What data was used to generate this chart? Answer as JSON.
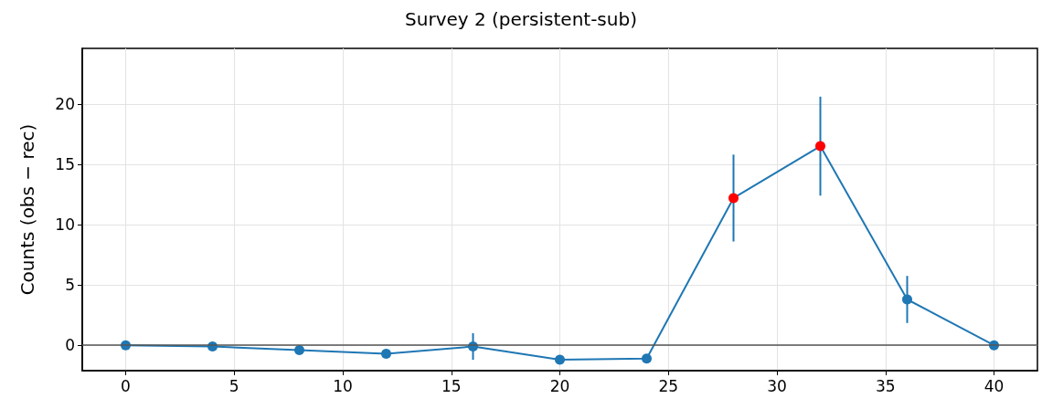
{
  "chart_data": {
    "type": "line",
    "title": "Survey 2 (persistent-sub)",
    "ylabel": "Counts (obs − rec)",
    "x": [
      0,
      4,
      8,
      12,
      16,
      20,
      24,
      28,
      32,
      36,
      40
    ],
    "series": [
      {
        "color": "#1f77b4",
        "colors": [
          "#1f77b4",
          "#1f77b4",
          "#1f77b4",
          "#1f77b4",
          "#1f77b4",
          "#1f77b4",
          "#1f77b4",
          "#ff0000",
          "#ff0000",
          "#1f77b4",
          "#1f77b4"
        ],
        "values": [
          0,
          -0.1,
          -0.4,
          -0.7,
          -0.1,
          -1.2,
          -1.1,
          12.2,
          16.5,
          3.8,
          0
        ],
        "errors": [
          null,
          null,
          null,
          null,
          1.1,
          null,
          null,
          3.6,
          4.1,
          1.95,
          null
        ]
      }
    ],
    "xlim": [
      -2,
      42
    ],
    "xticks": [
      0,
      5,
      10,
      15,
      20,
      25,
      30,
      35,
      40
    ],
    "ylim": [
      -2.1,
      24.6
    ],
    "yticks": [
      0,
      5,
      10,
      15,
      20
    ],
    "ref_lines": [
      {
        "axis": "y",
        "value": 0,
        "color": "#555555"
      }
    ],
    "grid": true,
    "marker": "circle",
    "line_style": "solid"
  }
}
